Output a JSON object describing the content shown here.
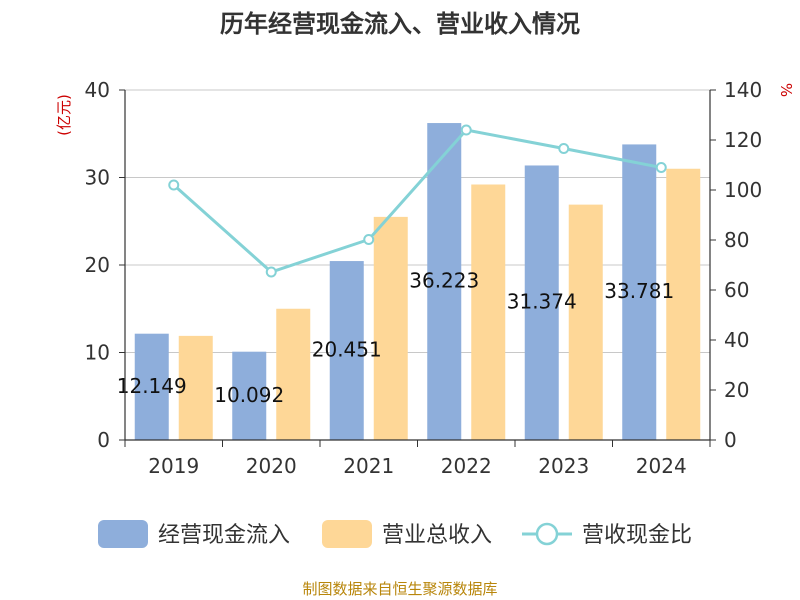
{
  "chart_data": {
    "type": "bar",
    "title": "历年经营现金流入、营业收入情况",
    "y_left_label": "(亿元)",
    "y_right_label": "%",
    "categories": [
      "2019",
      "2020",
      "2021",
      "2022",
      "2023",
      "2024"
    ],
    "y_left_range": [
      0,
      40
    ],
    "y_left_ticks": [
      "0",
      "10",
      "20",
      "30",
      "40"
    ],
    "y_right_range": [
      0,
      140
    ],
    "y_right_ticks": [
      "0",
      "20",
      "40",
      "60",
      "80",
      "100",
      "120",
      "140"
    ],
    "grid": true,
    "legend_position": "bottom",
    "series": [
      {
        "name": "经营现金流入",
        "kind": "bar",
        "axis": "left",
        "color": "#8eaedb",
        "values": [
          12.149,
          10.092,
          20.451,
          36.223,
          31.374,
          33.781
        ],
        "labels": [
          "12.149",
          "10.092",
          "20.451",
          "36.223",
          "31.374",
          "33.781"
        ]
      },
      {
        "name": "营业总收入",
        "kind": "bar",
        "axis": "left",
        "color": "#fed797",
        "values": [
          11.9,
          15.0,
          25.5,
          29.2,
          26.9,
          31.0
        ]
      },
      {
        "name": "营收现金比",
        "kind": "line",
        "axis": "right",
        "color": "#84d2d6",
        "values": [
          102,
          67.2,
          80.2,
          124,
          116.6,
          109
        ]
      }
    ],
    "source": "制图数据来自恒生聚源数据库"
  }
}
